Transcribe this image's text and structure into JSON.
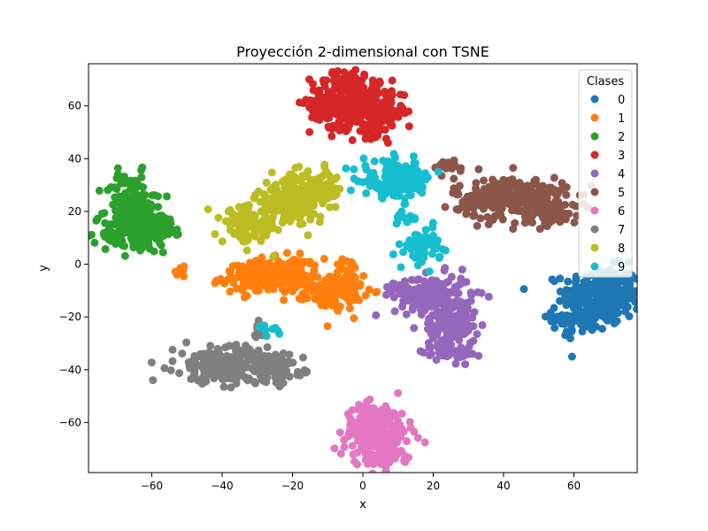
{
  "chart_data": {
    "type": "scatter",
    "title": "Proyección 2-dimensional con TSNE",
    "xlabel": "x",
    "ylabel": "y",
    "xlim": [
      -78,
      78
    ],
    "ylim": [
      -79,
      76
    ],
    "xticks": [
      -60,
      -40,
      -20,
      0,
      20,
      40,
      60
    ],
    "yticks": [
      -60,
      -40,
      -20,
      0,
      20,
      40,
      60
    ],
    "grid": false,
    "legend": {
      "title": "Clases",
      "placement": "upper-right"
    },
    "series": [
      {
        "name": "0",
        "color": "#1f77b4",
        "clusters": [
          {
            "cx": 68,
            "cy": -12,
            "sx": 5.5,
            "sy": 5.5,
            "n": 260
          },
          {
            "cx": 62,
            "cy": -20,
            "sx": 4,
            "sy": 3.5,
            "n": 80
          }
        ]
      },
      {
        "name": "1",
        "color": "#ff7f0e",
        "clusters": [
          {
            "cx": -28,
            "cy": -5,
            "sx": 6,
            "sy": 3,
            "n": 170
          },
          {
            "cx": -20,
            "cy": -2,
            "sx": 3,
            "sy": 3,
            "n": 60
          },
          {
            "cx": -8,
            "cy": -10,
            "sx": 4,
            "sy": 3.5,
            "n": 130
          },
          {
            "cx": -5,
            "cy": -1,
            "sx": 2,
            "sy": 2,
            "n": 15
          },
          {
            "cx": -52,
            "cy": -3,
            "sx": 1.5,
            "sy": 1,
            "n": 10
          }
        ]
      },
      {
        "name": "2",
        "color": "#2ca02c",
        "clusters": [
          {
            "cx": -66,
            "cy": 22,
            "sx": 3.5,
            "sy": 6,
            "n": 150
          },
          {
            "cx": -64,
            "cy": 12,
            "sx": 5,
            "sy": 4,
            "n": 120
          },
          {
            "cx": -58,
            "cy": 15,
            "sx": 2.5,
            "sy": 2.5,
            "n": 40
          }
        ]
      },
      {
        "name": "3",
        "color": "#d62728",
        "clusters": [
          {
            "cx": -6,
            "cy": 62,
            "sx": 4.5,
            "sy": 5,
            "n": 220
          },
          {
            "cx": 4,
            "cy": 58,
            "sx": 4,
            "sy": 4.5,
            "n": 150
          },
          {
            "cx": -4,
            "cy": 70,
            "sx": 2.5,
            "sy": 2,
            "n": 30
          }
        ]
      },
      {
        "name": "4",
        "color": "#9467bd",
        "clusters": [
          {
            "cx": 20,
            "cy": -12,
            "sx": 5.5,
            "sy": 4,
            "n": 150
          },
          {
            "cx": 25,
            "cy": -23,
            "sx": 3.5,
            "sy": 5,
            "n": 130
          },
          {
            "cx": 24,
            "cy": -33,
            "sx": 3.5,
            "sy": 2,
            "n": 40
          },
          {
            "cx": 10,
            "cy": -9,
            "sx": 1.5,
            "sy": 1,
            "n": 10
          }
        ]
      },
      {
        "name": "5",
        "color": "#8c564b",
        "clusters": [
          {
            "cx": 42,
            "cy": 25,
            "sx": 8,
            "sy": 4,
            "n": 260
          },
          {
            "cx": 53,
            "cy": 20,
            "sx": 4,
            "sy": 2.5,
            "n": 70
          },
          {
            "cx": 24,
            "cy": 37,
            "sx": 3,
            "sy": 1.5,
            "n": 20
          }
        ]
      },
      {
        "name": "6",
        "color": "#e377c2",
        "clusters": [
          {
            "cx": 4,
            "cy": -62,
            "sx": 4.5,
            "sy": 4.5,
            "n": 190
          },
          {
            "cx": 5,
            "cy": -73,
            "sx": 3.5,
            "sy": 2.5,
            "n": 60
          }
        ]
      },
      {
        "name": "7",
        "color": "#7f7f7f",
        "clusters": [
          {
            "cx": -40,
            "cy": -38,
            "sx": 6.5,
            "sy": 3.5,
            "n": 200
          },
          {
            "cx": -26,
            "cy": -39,
            "sx": 4.5,
            "sy": 3,
            "n": 110
          },
          {
            "cx": -30,
            "cy": -26,
            "sx": 1.2,
            "sy": 1.8,
            "n": 12
          }
        ]
      },
      {
        "name": "8",
        "color": "#bcbd22",
        "clusters": [
          {
            "cx": -20,
            "cy": 25,
            "sx": 5,
            "sy": 4.5,
            "n": 180
          },
          {
            "cx": -32,
            "cy": 15,
            "sx": 4,
            "sy": 3.5,
            "n": 110
          },
          {
            "cx": -12,
            "cy": 28,
            "sx": 3,
            "sy": 3,
            "n": 60
          }
        ]
      },
      {
        "name": "9",
        "color": "#17becf",
        "clusters": [
          {
            "cx": 10,
            "cy": 32,
            "sx": 5,
            "sy": 3.5,
            "n": 170
          },
          {
            "cx": 17,
            "cy": 7,
            "sx": 2.5,
            "sy": 3.5,
            "n": 60
          },
          {
            "cx": 12,
            "cy": 17,
            "sx": 1.5,
            "sy": 1,
            "n": 12
          },
          {
            "cx": -26,
            "cy": -25,
            "sx": 1.5,
            "sy": 1,
            "n": 8
          }
        ]
      }
    ]
  }
}
